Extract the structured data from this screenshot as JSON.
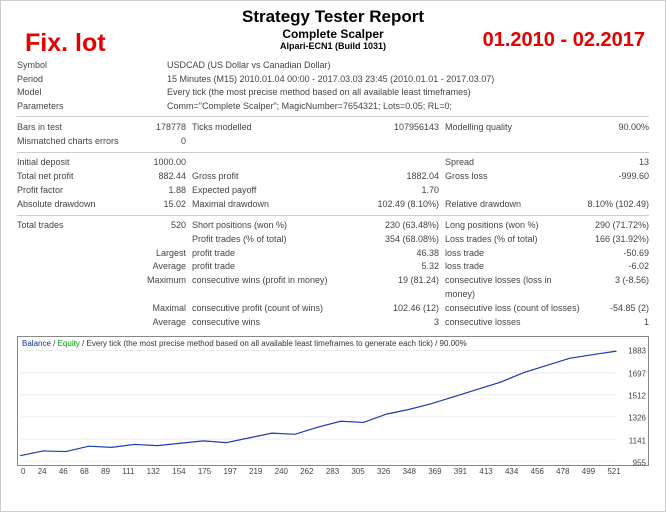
{
  "header": {
    "title": "Strategy Tester Report",
    "subtitle": "Complete Scalper",
    "server": "Alpari-ECN1 (Build 1031)",
    "overlay_left": "Fix. lot",
    "overlay_right": "01.2010 - 02.2017"
  },
  "info": {
    "symbol_label": "Symbol",
    "symbol": "USDCAD (US Dollar vs Canadian Dollar)",
    "period_label": "Period",
    "period": "15 Minutes (M15) 2010.01.04 00:00 - 2017.03.03 23:45 (2010.01.01 - 2017.03.07)",
    "model_label": "Model",
    "model": "Every tick (the most precise method based on all available least timeframes)",
    "params_label": "Parameters",
    "params": "Comm=\"Complete Scalper\"; MagicNumber=7654321; Lots=0.05; RL=0;"
  },
  "stats": {
    "bars_in_test_l": "Bars in test",
    "bars_in_test": "178778",
    "ticks_modelled_l": "Ticks modelled",
    "ticks_modelled": "107956143",
    "modelling_quality_l": "Modelling quality",
    "modelling_quality": "90.00%",
    "mismatched_l": "Mismatched charts errors",
    "mismatched": "0",
    "initial_deposit_l": "Initial deposit",
    "initial_deposit": "1000.00",
    "spread_l": "Spread",
    "spread": "13",
    "total_net_profit_l": "Total net profit",
    "total_net_profit": "882.44",
    "gross_profit_l": "Gross profit",
    "gross_profit": "1882.04",
    "gross_loss_l": "Gross loss",
    "gross_loss": "-999.60",
    "profit_factor_l": "Profit factor",
    "profit_factor": "1.88",
    "expected_payoff_l": "Expected payoff",
    "expected_payoff": "1.70",
    "abs_dd_l": "Absolute drawdown",
    "abs_dd": "15.02",
    "max_dd_l": "Maximal drawdown",
    "max_dd": "102.49 (8.10%)",
    "rel_dd_l": "Relative drawdown",
    "rel_dd": "8.10% (102.49)",
    "total_trades_l": "Total trades",
    "total_trades": "520",
    "short_pos_l": "Short positions (won %)",
    "short_pos": "230 (63.48%)",
    "long_pos_l": "Long positions (won %)",
    "long_pos": "290 (71.72%)",
    "profit_trades_l": "Profit trades (% of total)",
    "profit_trades": "354 (68.08%)",
    "loss_trades_l": "Loss trades (% of total)",
    "loss_trades": "166 (31.92%)",
    "largest_l": "Largest",
    "largest_pt_l": "profit trade",
    "largest_pt": "46.38",
    "largest_lt_l": "loss trade",
    "largest_lt": "-50.69",
    "average_l": "Average",
    "avg_pt_l": "profit trade",
    "avg_pt": "5.32",
    "avg_lt_l": "loss trade",
    "avg_lt": "-6.02",
    "maximum_l": "Maximum",
    "max_cw_l": "consecutive wins (profit in money)",
    "max_cw": "19 (81.24)",
    "max_cl_l": "consecutive losses (loss in money)",
    "max_cl": "3 (-8.56)",
    "maximal_l": "Maximal",
    "max_cp_l": "consecutive profit (count of wins)",
    "max_cp": "102.46 (12)",
    "max_closs_l": "consecutive loss (count of losses)",
    "max_closs": "-54.85 (2)",
    "avg2_l": "Average",
    "avg_cw_l": "consecutive wins",
    "avg_cw": "3",
    "avg_cl_l": "consecutive losses",
    "avg_cl": "1"
  },
  "chart": {
    "caption_balance": "Balance",
    "caption_equity": "Equity",
    "caption_rest": " / Every tick (the most precise method based on all available least timeframes to generate each tick) / 90.00%",
    "y_ticks": [
      955,
      1141,
      1326,
      1512,
      1697,
      1883
    ],
    "x_ticks": [
      0,
      24,
      46,
      68,
      89,
      111,
      132,
      154,
      175,
      197,
      219,
      240,
      262,
      283,
      305,
      326,
      348,
      369,
      391,
      413,
      434,
      456,
      478,
      499,
      521
    ],
    "series_color": "#1a3db0",
    "grid_color": "#d8d8d8",
    "balance_points": [
      [
        0,
        1000
      ],
      [
        20,
        1040
      ],
      [
        40,
        1035
      ],
      [
        60,
        1080
      ],
      [
        80,
        1070
      ],
      [
        100,
        1095
      ],
      [
        120,
        1085
      ],
      [
        140,
        1105
      ],
      [
        160,
        1125
      ],
      [
        180,
        1110
      ],
      [
        200,
        1150
      ],
      [
        220,
        1190
      ],
      [
        240,
        1180
      ],
      [
        260,
        1240
      ],
      [
        280,
        1290
      ],
      [
        300,
        1280
      ],
      [
        320,
        1350
      ],
      [
        340,
        1390
      ],
      [
        360,
        1440
      ],
      [
        380,
        1500
      ],
      [
        400,
        1560
      ],
      [
        420,
        1620
      ],
      [
        440,
        1700
      ],
      [
        460,
        1760
      ],
      [
        480,
        1820
      ],
      [
        500,
        1850
      ],
      [
        521,
        1880
      ]
    ]
  }
}
